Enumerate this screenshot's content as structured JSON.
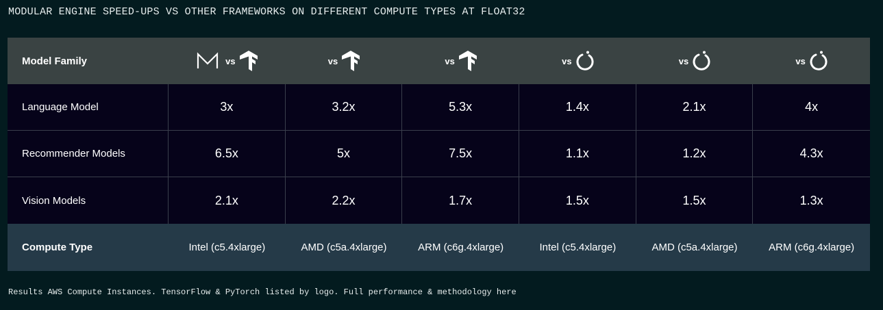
{
  "title": "MODULAR ENGINE SPEED-UPS VS OTHER FRAMEWORKS ON DIFFERENT COMPUTE TYPES AT FLOAT32",
  "table": {
    "header_label": "Model Family",
    "vs_text": "vs",
    "columns": [
      {
        "framework_icon": "tensorflow-icon",
        "show_modular_logo": true
      },
      {
        "framework_icon": "tensorflow-icon",
        "show_modular_logo": false
      },
      {
        "framework_icon": "tensorflow-icon",
        "show_modular_logo": false
      },
      {
        "framework_icon": "pytorch-icon",
        "show_modular_logo": false
      },
      {
        "framework_icon": "pytorch-icon",
        "show_modular_logo": false
      },
      {
        "framework_icon": "pytorch-icon",
        "show_modular_logo": false
      }
    ],
    "rows": [
      {
        "label": "Language Model",
        "values": [
          "3x",
          "3.2x",
          "5.3x",
          "1.4x",
          "2.1x",
          "4x"
        ]
      },
      {
        "label": "Recommender Models",
        "values": [
          "6.5x",
          "5x",
          "7.5x",
          "1.1x",
          "1.2x",
          "4.3x"
        ]
      },
      {
        "label": "Vision Models",
        "values": [
          "2.1x",
          "2.2x",
          "1.7x",
          "1.5x",
          "1.5x",
          "1.3x"
        ]
      }
    ],
    "footer_label": "Compute Type",
    "compute_types": [
      "Intel (c5.4xlarge)",
      "AMD (c5a.4xlarge)",
      "ARM (c6g.4xlarge)",
      "Intel (c5.4xlarge)",
      "AMD (c5a.4xlarge)",
      "ARM (c6g.4xlarge)"
    ]
  },
  "footnote": "Results AWS Compute Instances. TensorFlow & PyTorch listed by logo. Full performance & methodology here",
  "colors": {
    "background": "#031b1f",
    "header_bg": "#3a4343",
    "body_bg": "#06031a",
    "footer_bg": "#253a48"
  }
}
